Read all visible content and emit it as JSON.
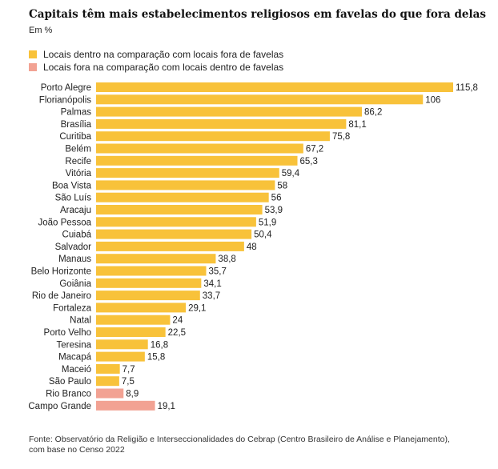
{
  "title": "Capitais têm mais estabelecimentos religiosos em favelas do que fora delas",
  "subtitle": "Em %",
  "legend": [
    {
      "label": "Locais dentro na comparação com locais fora de favelas",
      "color": "#F8C23A"
    },
    {
      "label": "Locais fora na comparação com locais dentro de favelas",
      "color": "#F2A293"
    }
  ],
  "source": {
    "line1": "Fonte: Observatório da Religião e Interseccionalidades do Cebrap (Centro Brasileiro de Análise e Planejamento),",
    "line2": "com base no Censo 2022"
  },
  "chart_data": {
    "type": "bar",
    "orientation": "horizontal",
    "categories": [
      "Porto Alegre",
      "Florianópolis",
      "Palmas",
      "Brasília",
      "Curitiba",
      "Belém",
      "Recife",
      "Vitória",
      "Boa Vista",
      "São Luís",
      "Aracaju",
      "João Pessoa",
      "Cuiabá",
      "Salvador",
      "Manaus",
      "Belo Horizonte",
      "Goiânia",
      "Rio de Janeiro",
      "Fortaleza",
      "Natal",
      "Porto Velho",
      "Teresina",
      "Macapá",
      "Maceió",
      "São Paulo",
      "Rio Branco",
      "Campo Grande"
    ],
    "values": [
      115.8,
      106,
      86.2,
      81.1,
      75.8,
      67.2,
      65.3,
      59.4,
      58,
      56,
      53.9,
      51.9,
      50.4,
      48,
      38.8,
      35.7,
      34.1,
      33.7,
      29.1,
      24,
      22.5,
      16.8,
      15.8,
      7.7,
      7.5,
      8.9,
      19.1
    ],
    "value_labels": [
      "115,8",
      "106",
      "86,2",
      "81,1",
      "75,8",
      "67,2",
      "65,3",
      "59,4",
      "58",
      "56",
      "53,9",
      "51,9",
      "50,4",
      "48",
      "38,8",
      "35,7",
      "34,1",
      "33,7",
      "29,1",
      "24",
      "22,5",
      "16,8",
      "15,8",
      "7,7",
      "7,5",
      "8,9",
      "19,1"
    ],
    "series_index": [
      0,
      0,
      0,
      0,
      0,
      0,
      0,
      0,
      0,
      0,
      0,
      0,
      0,
      0,
      0,
      0,
      0,
      0,
      0,
      0,
      0,
      0,
      0,
      0,
      0,
      1,
      1
    ],
    "xlim": [
      0,
      115.8
    ],
    "grid": false
  }
}
